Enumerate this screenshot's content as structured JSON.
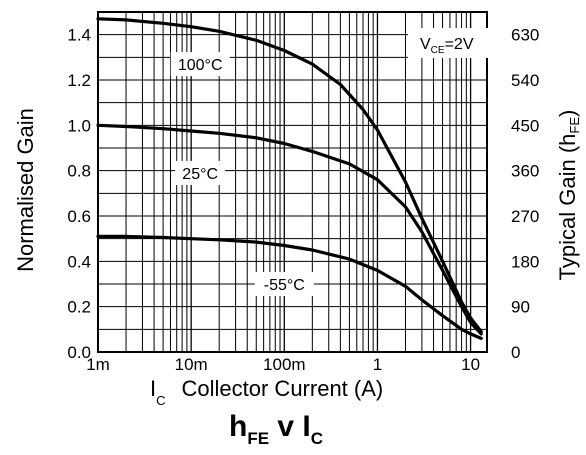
{
  "chart_data": {
    "type": "line",
    "title": "h",
    "title_sub": "FE",
    "title_rest": " v I",
    "title_sub2": "C",
    "xlabel_symbol": "I",
    "xlabel_sub": "C",
    "xlabel_text": "Collector Current (A)",
    "ylabel": "Normalised Gain",
    "y2label_main": "Typical Gain (h",
    "y2label_sub": "FE",
    "y2label_close": ")",
    "x_scale": "log",
    "xlim": [
      0.001,
      15
    ],
    "ylim": [
      0,
      1.5
    ],
    "y2lim": [
      0,
      675
    ],
    "grid": true,
    "x_ticks": [
      {
        "value": 0.001,
        "label": "1m"
      },
      {
        "value": 0.01,
        "label": "10m"
      },
      {
        "value": 0.1,
        "label": "100m"
      },
      {
        "value": 1,
        "label": "1"
      },
      {
        "value": 10,
        "label": "10"
      }
    ],
    "y_ticks": [
      0,
      0.2,
      0.4,
      0.6,
      0.8,
      1.0,
      1.2,
      1.4
    ],
    "y_tick_labels": [
      "0.0",
      "0.2",
      "0.4",
      "0.6",
      "0.8",
      "1.0",
      "1.2",
      "1.4"
    ],
    "y2_ticks": [
      0,
      90,
      180,
      270,
      360,
      450,
      540,
      630
    ],
    "condition": {
      "main": "V",
      "sub": "CE",
      "rest": "=2V"
    },
    "series": [
      {
        "name": "100°C",
        "x": [
          0.001,
          0.002,
          0.005,
          0.01,
          0.02,
          0.05,
          0.1,
          0.2,
          0.4,
          0.7,
          1,
          2,
          3,
          5,
          8,
          10,
          13
        ],
        "y": [
          1.47,
          1.465,
          1.45,
          1.435,
          1.415,
          1.375,
          1.33,
          1.27,
          1.18,
          1.07,
          0.98,
          0.75,
          0.59,
          0.4,
          0.22,
          0.15,
          0.09
        ]
      },
      {
        "name": "25°C",
        "x": [
          0.001,
          0.002,
          0.005,
          0.01,
          0.02,
          0.05,
          0.1,
          0.2,
          0.5,
          1,
          2,
          3,
          5,
          8,
          10,
          13
        ],
        "y": [
          1.0,
          0.995,
          0.985,
          0.975,
          0.965,
          0.945,
          0.92,
          0.885,
          0.83,
          0.76,
          0.64,
          0.53,
          0.36,
          0.2,
          0.13,
          0.08
        ]
      },
      {
        "name": "-55°C",
        "x": [
          0.001,
          0.002,
          0.005,
          0.01,
          0.02,
          0.05,
          0.1,
          0.2,
          0.5,
          1,
          2,
          3,
          5,
          8,
          10,
          13
        ],
        "y": [
          0.51,
          0.51,
          0.505,
          0.5,
          0.495,
          0.485,
          0.47,
          0.45,
          0.41,
          0.36,
          0.29,
          0.23,
          0.16,
          0.1,
          0.08,
          0.06
        ]
      }
    ],
    "annotations": [
      {
        "series": "100°C",
        "text": "100°C",
        "x": 0.0125,
        "y": 1.27
      },
      {
        "series": "25°C",
        "text": "25°C",
        "x": 0.0125,
        "y": 0.79
      },
      {
        "series": "-55°C",
        "text": "-55°C",
        "x": 0.1,
        "y": 0.3
      }
    ]
  }
}
